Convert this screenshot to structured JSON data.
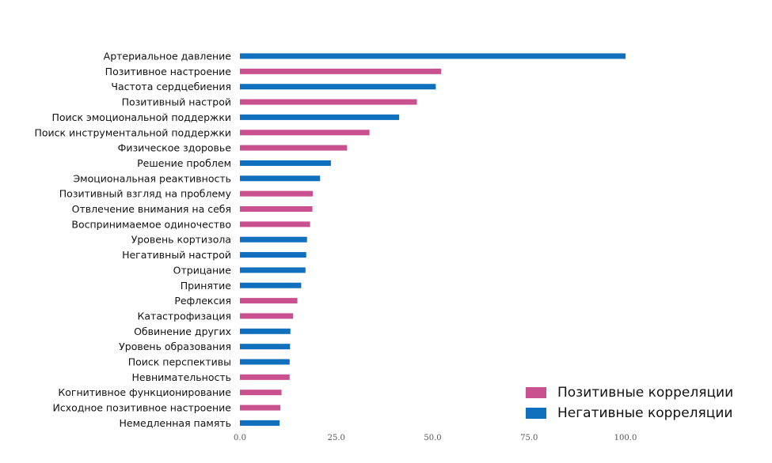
{
  "chart_data": {
    "type": "bar",
    "orientation": "horizontal",
    "title": "",
    "xlabel": "",
    "ylabel": "",
    "xlim": [
      0,
      100
    ],
    "ticks": [
      "0.0",
      "25.0",
      "50.0",
      "75.0",
      "100.0"
    ],
    "grid": false,
    "legend_position": "bottom-right",
    "legend": [
      {
        "label": "Позитивные корреляции",
        "color": "#c9518f"
      },
      {
        "label": "Негативные корреляции",
        "color": "#1170be"
      }
    ],
    "categories": [
      "Артериальное давление",
      "Позитивное настроение",
      "Частота сердцебиения",
      "Позитивный настрой",
      "Поиск эмоциональной поддержки",
      "Поиск инструментальной поддержки",
      "Физическое здоровье",
      "Решение проблем",
      "Эмоциональная реактивность",
      "Позитивный взгляд на проблему",
      "Отвлечение внимания на себя",
      "Воспринимаемое одиночество",
      "Уровень кортизола",
      "Негативный настрой",
      "Отрицание",
      "Принятие",
      "Рефлексия",
      "Катастрофизация",
      "Обвинение других",
      "Уровень образования",
      "Поиск перспективы",
      "Невнимательность",
      "Когнитивное функционирование",
      "Исходное позитивное настроение",
      "Немедленная память"
    ],
    "values": [
      100,
      52.2,
      50.8,
      45.9,
      41.3,
      33.6,
      27.8,
      23.6,
      20.8,
      18.9,
      18.8,
      18.2,
      17.4,
      17.2,
      17.0,
      15.9,
      14.9,
      13.8,
      13.1,
      13.0,
      12.9,
      12.9,
      10.8,
      10.5,
      10.3
    ],
    "polarity": [
      "negative",
      "positive",
      "negative",
      "positive",
      "negative",
      "positive",
      "positive",
      "negative",
      "negative",
      "positive",
      "positive",
      "positive",
      "negative",
      "negative",
      "negative",
      "negative",
      "positive",
      "positive",
      "negative",
      "negative",
      "negative",
      "positive",
      "positive",
      "positive",
      "negative"
    ]
  }
}
